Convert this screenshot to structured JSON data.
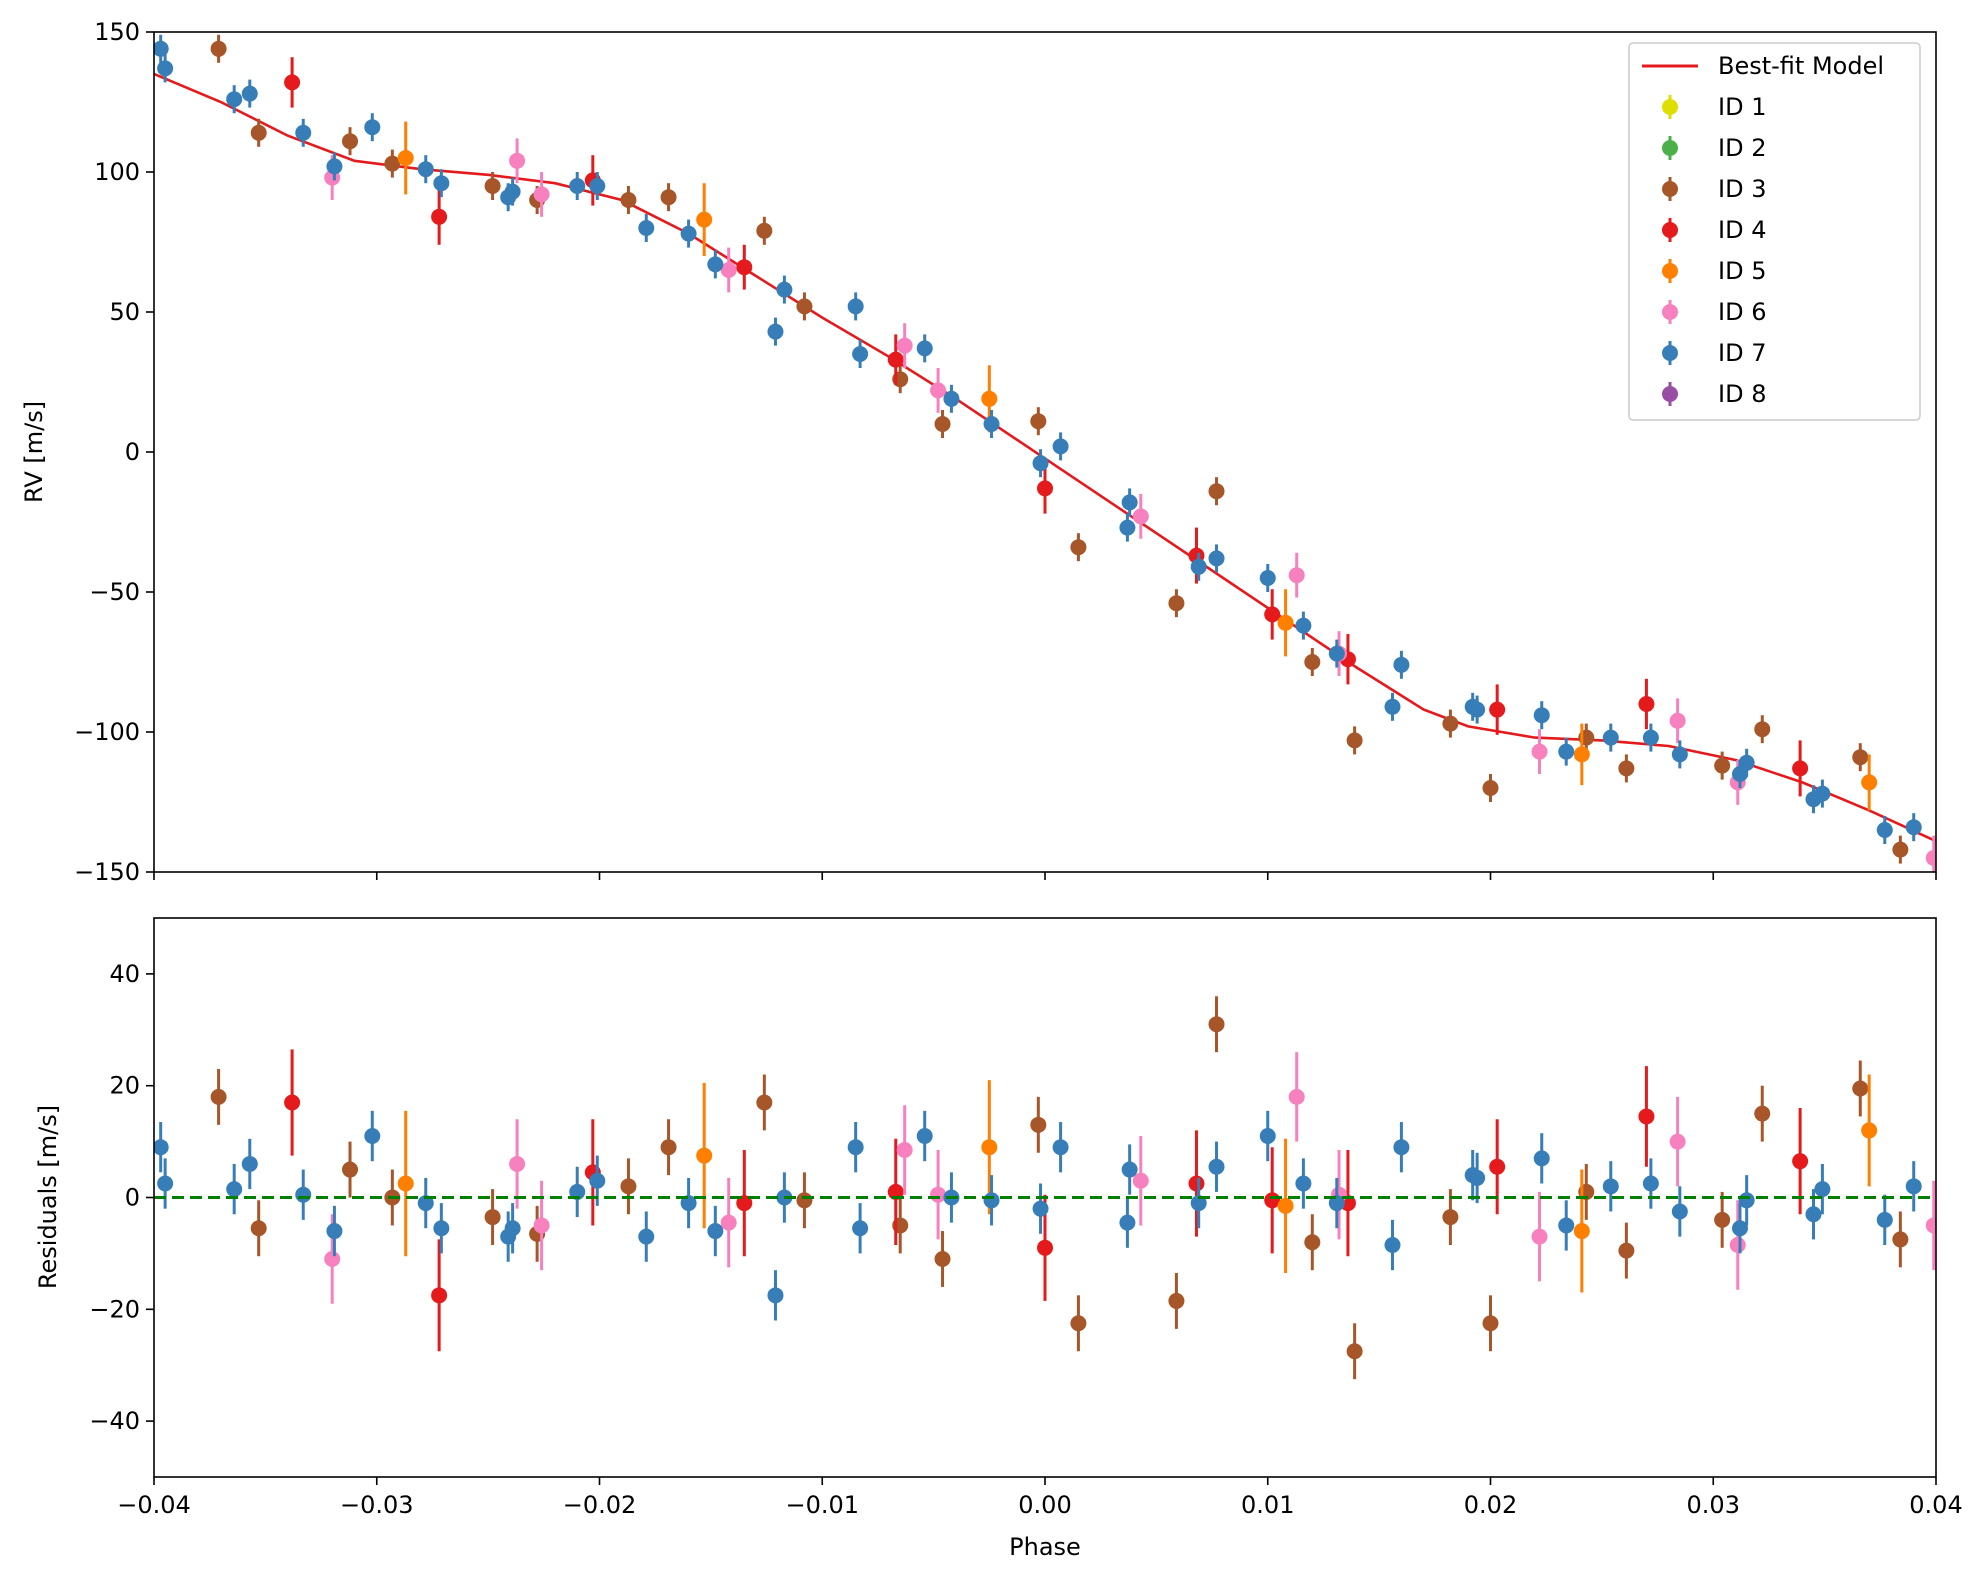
{
  "colors": {
    "model": "#e41a1c",
    "zero_line": "#008000",
    "ids": {
      "ID 1": "#dede00",
      "ID 2": "#4daf4a",
      "ID 3": "#a65628",
      "ID 4": "#e41a1c",
      "ID 5": "#ff7f00",
      "ID 6": "#f781bf",
      "ID 7": "#377eb8",
      "ID 8": "#984ea3"
    }
  },
  "chart_data": [
    {
      "type": "scatter",
      "panel": "rv",
      "xlabel": "Phase",
      "ylabel": "RV [m/s]",
      "xlim": [
        -0.04,
        0.04
      ],
      "ylim": [
        -150,
        150
      ],
      "yticks": [
        150,
        100,
        50,
        0,
        -50,
        -100,
        -150
      ],
      "ytick_labels": [
        "150",
        "100",
        "50",
        "0",
        "−50",
        "−100",
        "−150"
      ],
      "legend_position": "top-right",
      "legend": [
        "Best-fit Model",
        "ID 1",
        "ID 2",
        "ID 3",
        "ID 4",
        "ID 5",
        "ID 6",
        "ID 7",
        "ID 8"
      ],
      "model_name": "Best-fit Model",
      "model_curve": {
        "x": [
          -0.04,
          -0.037,
          -0.034,
          -0.031,
          -0.028,
          -0.025,
          -0.022,
          -0.019,
          -0.016,
          -0.013,
          -0.01,
          -0.007,
          -0.004,
          -0.001,
          0.002,
          0.005,
          0.008,
          0.011,
          0.014,
          0.017,
          0.019,
          0.022,
          0.025,
          0.028,
          0.031,
          0.034,
          0.037,
          0.04
        ],
        "y": [
          135,
          125,
          113,
          104,
          101,
          99,
          96,
          90,
          78,
          63,
          48,
          34,
          19,
          3,
          -13,
          -29,
          -45,
          -61,
          -77,
          -92,
          -98,
          -102,
          -103,
          -105,
          -110,
          -118,
          -128,
          -139
        ]
      },
      "series": [
        {
          "name": "ID 3",
          "x": [
            -0.0371,
            -0.0353,
            -0.0312,
            -0.0293,
            -0.0248,
            -0.0228,
            -0.0187,
            -0.0169,
            -0.0126,
            -0.0108,
            -0.0065,
            -0.0046,
            -0.0003,
            0.0015,
            0.0059,
            0.0077,
            0.012,
            0.0139,
            0.0182,
            0.02,
            0.0243,
            0.0261,
            0.0304,
            0.0322,
            0.0366,
            0.0384
          ],
          "y": [
            144,
            114,
            111,
            103,
            95,
            90,
            90,
            91,
            79,
            52,
            26,
            10,
            11,
            -34,
            -54,
            -14,
            -75,
            -103,
            -97,
            -120,
            -102,
            -113,
            -112,
            -99,
            -109,
            -142
          ],
          "err": [
            5,
            5,
            5,
            5,
            5,
            5,
            5,
            5,
            5,
            5,
            5,
            5,
            5,
            5,
            5,
            5,
            5,
            5,
            5,
            5,
            5,
            5,
            5,
            5,
            5,
            5
          ]
        },
        {
          "name": "ID 4",
          "x": [
            -0.0338,
            -0.0272,
            -0.0203,
            -0.0135,
            -0.0067,
            0.0,
            0.0068,
            0.0102,
            0.0136,
            0.0203,
            0.027,
            0.0339
          ],
          "y": [
            132,
            84,
            97,
            66,
            33,
            -13,
            -37,
            -58,
            -74,
            -92,
            -90,
            -113
          ],
          "err": [
            9,
            10,
            9,
            8,
            9,
            9,
            10,
            9,
            9,
            9,
            9,
            10
          ]
        },
        {
          "name": "ID 5",
          "x": [
            -0.0287,
            -0.0153,
            -0.0025,
            0.0108,
            0.0241,
            0.037
          ],
          "y": [
            105,
            83,
            19,
            -61,
            -108,
            -118
          ],
          "err": [
            13,
            13,
            12,
            12,
            11,
            10
          ]
        },
        {
          "name": "ID 6",
          "x": [
            -0.032,
            -0.0237,
            -0.0226,
            -0.0142,
            -0.0063,
            -0.0048,
            0.0043,
            0.0113,
            0.0132,
            0.0222,
            0.0284,
            0.0311,
            0.0399
          ],
          "y": [
            98,
            104,
            92,
            65,
            38,
            22,
            -23,
            -44,
            -72,
            -107,
            -96,
            -118,
            -145
          ],
          "err": [
            8,
            8,
            8,
            8,
            8,
            8,
            8,
            8,
            8,
            8,
            8,
            8,
            8
          ]
        },
        {
          "name": "ID 7",
          "x": [
            -0.0397,
            -0.0395,
            -0.0364,
            -0.0357,
            -0.0333,
            -0.0319,
            -0.0302,
            -0.0278,
            -0.0271,
            -0.0241,
            -0.0239,
            -0.021,
            -0.0201,
            -0.0179,
            -0.016,
            -0.0148,
            -0.0117,
            -0.0121,
            -0.0085,
            -0.0083,
            -0.0054,
            -0.0042,
            -0.0024,
            -0.0002,
            0.0007,
            0.0037,
            0.0038,
            0.0069,
            0.0077,
            0.01,
            0.0116,
            0.0131,
            0.0156,
            0.016,
            0.0192,
            0.0194,
            0.0223,
            0.0234,
            0.0254,
            0.0272,
            0.0285,
            0.0312,
            0.0315,
            0.0345,
            0.0349,
            0.0377,
            0.039
          ],
          "y": [
            144,
            137,
            126,
            128,
            114,
            102,
            116,
            101,
            96,
            91,
            93,
            95,
            95,
            80,
            78,
            67,
            58,
            43,
            52,
            35,
            37,
            19,
            10,
            -4,
            2,
            -27,
            -18,
            -41,
            -38,
            -45,
            -62,
            -72,
            -91,
            -76,
            -91,
            -92,
            -94,
            -107,
            -102,
            -102,
            -108,
            -115,
            -111,
            -124,
            -122,
            -135,
            -134
          ],
          "err": [
            5,
            5,
            5,
            5,
            5,
            5,
            5,
            5,
            5,
            5,
            5,
            5,
            5,
            5,
            5,
            5,
            5,
            5,
            5,
            5,
            5,
            5,
            5,
            5,
            5,
            5,
            5,
            5,
            5,
            5,
            5,
            5,
            5,
            5,
            5,
            5,
            5,
            5,
            5,
            5,
            5,
            5,
            5,
            5,
            5,
            5,
            5
          ]
        }
      ]
    },
    {
      "type": "scatter",
      "panel": "residuals",
      "xlabel": "Phase",
      "ylabel": "Residuals [m/s]",
      "xlim": [
        -0.04,
        0.04
      ],
      "ylim": [
        -50,
        50
      ],
      "xticks": [
        -0.04,
        -0.03,
        -0.02,
        -0.01,
        0.0,
        0.01,
        0.02,
        0.03,
        0.04
      ],
      "xtick_labels": [
        "−0.04",
        "−0.03",
        "−0.02",
        "−0.01",
        "0.00",
        "0.01",
        "0.02",
        "0.03",
        "0.04"
      ],
      "yticks": [
        40,
        20,
        0,
        -20,
        -40
      ],
      "ytick_labels": [
        "40",
        "20",
        "0",
        "−20",
        "−40"
      ],
      "zero_line": 0,
      "series": [
        {
          "name": "ID 3",
          "x": [
            -0.0371,
            -0.0353,
            -0.0312,
            -0.0293,
            -0.0248,
            -0.0228,
            -0.0187,
            -0.0169,
            -0.0126,
            -0.0108,
            -0.0065,
            -0.0046,
            -0.0003,
            0.0015,
            0.0059,
            0.0077,
            0.012,
            0.0139,
            0.0182,
            0.02,
            0.0243,
            0.0261,
            0.0304,
            0.0322,
            0.0366,
            0.0384
          ],
          "y": [
            18,
            -5.5,
            5,
            0,
            -3.5,
            -6.5,
            2,
            9,
            17,
            -0.5,
            -5,
            -11,
            13,
            -22.5,
            -18.5,
            31,
            -8,
            -27.5,
            -3.5,
            -22.5,
            1,
            -9.5,
            -4,
            15,
            19.5,
            -7.5
          ],
          "err": [
            5,
            5,
            5,
            5,
            5,
            5,
            5,
            5,
            5,
            5,
            5,
            5,
            5,
            5,
            5,
            5,
            5,
            5,
            5,
            5,
            5,
            5,
            5,
            5,
            5,
            5
          ]
        },
        {
          "name": "ID 4",
          "x": [
            -0.0338,
            -0.0272,
            -0.0203,
            -0.0135,
            -0.0067,
            0.0,
            0.0068,
            0.0102,
            0.0136,
            0.0203,
            0.027,
            0.0339
          ],
          "y": [
            17,
            -17.5,
            4.5,
            -1,
            1,
            -9,
            2.5,
            -0.5,
            -1,
            5.5,
            14.5,
            6.5
          ],
          "err": [
            9.5,
            10,
            9.5,
            9.5,
            9.5,
            9.5,
            9.5,
            9.5,
            9.5,
            8.5,
            9,
            9.5
          ]
        },
        {
          "name": "ID 5",
          "x": [
            -0.0287,
            -0.0153,
            -0.0025,
            0.0108,
            0.0241,
            0.037
          ],
          "y": [
            2.5,
            7.5,
            9,
            -1.5,
            -6,
            12
          ],
          "err": [
            13,
            13,
            12,
            12,
            11,
            10
          ]
        },
        {
          "name": "ID 6",
          "x": [
            -0.032,
            -0.0237,
            -0.0226,
            -0.0142,
            -0.0063,
            -0.0048,
            0.0043,
            0.0113,
            0.0132,
            0.0222,
            0.0284,
            0.0311,
            0.0399
          ],
          "y": [
            -11,
            6,
            -5,
            -4.5,
            8.5,
            0.5,
            3,
            18,
            0.5,
            -7,
            10,
            -8.5,
            -5
          ],
          "err": [
            8,
            8,
            8,
            8,
            8,
            8,
            8,
            8,
            8,
            8,
            8,
            8,
            8
          ]
        },
        {
          "name": "ID 7",
          "x": [
            -0.0397,
            -0.0395,
            -0.0364,
            -0.0357,
            -0.0333,
            -0.0319,
            -0.0302,
            -0.0278,
            -0.0271,
            -0.0241,
            -0.0239,
            -0.021,
            -0.0201,
            -0.0179,
            -0.016,
            -0.0148,
            -0.0117,
            -0.0121,
            -0.0085,
            -0.0083,
            -0.0054,
            -0.0042,
            -0.0024,
            -0.0002,
            0.0007,
            0.0037,
            0.0038,
            0.0069,
            0.0077,
            0.01,
            0.0116,
            0.0131,
            0.0156,
            0.016,
            0.0192,
            0.0194,
            0.0223,
            0.0234,
            0.0254,
            0.0272,
            0.0285,
            0.0312,
            0.0315,
            0.0345,
            0.0349,
            0.0377,
            0.039
          ],
          "y": [
            9,
            2.5,
            1.5,
            6,
            0.5,
            -6,
            11,
            -1,
            -5.5,
            -7,
            -5.5,
            1,
            3,
            -7,
            -1,
            -6,
            0,
            -17.5,
            9,
            -5.5,
            11,
            0,
            -0.5,
            -2,
            9,
            -4.5,
            5,
            -1,
            5.5,
            11,
            2.5,
            -1,
            -8.5,
            9,
            4,
            3.5,
            7,
            -5,
            2,
            2.5,
            -2.5,
            -5.5,
            -0.5,
            -3,
            1.5,
            -4,
            2
          ],
          "err": [
            4.5,
            4.5,
            4.5,
            4.5,
            4.5,
            4.5,
            4.5,
            4.5,
            4.5,
            4.5,
            4.5,
            4.5,
            4.5,
            4.5,
            4.5,
            4.5,
            4.5,
            4.5,
            4.5,
            4.5,
            4.5,
            4.5,
            4.5,
            4.5,
            4.5,
            4.5,
            4.5,
            4.5,
            4.5,
            4.5,
            4.5,
            4.5,
            4.5,
            4.5,
            4.5,
            4.5,
            4.5,
            4.5,
            4.5,
            4.5,
            4.5,
            4.5,
            4.5,
            4.5,
            4.5,
            4.5,
            4.5
          ]
        }
      ]
    }
  ]
}
